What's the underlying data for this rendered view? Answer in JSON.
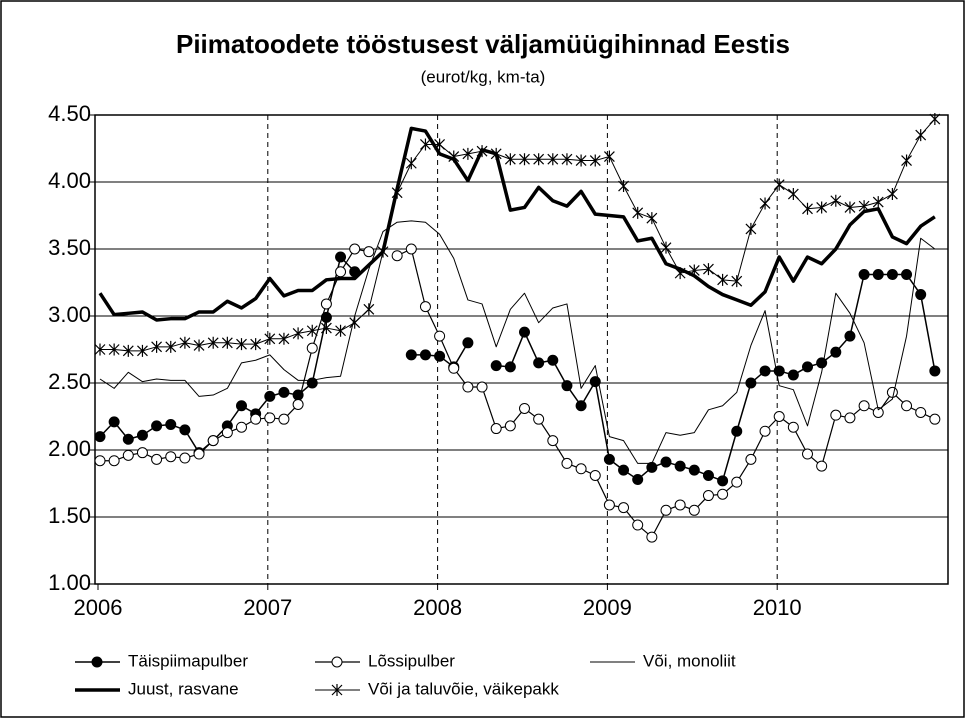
{
  "chart_data": {
    "type": "line",
    "title": "Piimatoodete tööstusest väljamüügihinnad Eestis",
    "subtitle": "(eurot/kg, km-ta)",
    "categories": [
      "2006",
      null,
      null,
      null,
      null,
      null,
      null,
      null,
      null,
      null,
      null,
      null,
      "2007",
      null,
      null,
      null,
      null,
      null,
      null,
      null,
      null,
      null,
      null,
      null,
      "2008",
      null,
      null,
      null,
      null,
      null,
      null,
      null,
      null,
      null,
      null,
      null,
      "2009",
      null,
      null,
      null,
      null,
      null,
      null,
      null,
      null,
      null,
      null,
      null,
      "2010",
      null,
      null,
      null,
      null,
      null,
      null,
      null,
      null,
      null,
      null,
      null
    ],
    "ylim": [
      1,
      4.5
    ],
    "yticks": [
      {
        "value": 1,
        "label": "1.00"
      },
      {
        "value": 1.5,
        "label": "1.50"
      },
      {
        "value": 2,
        "label": "2.00"
      },
      {
        "value": 2.5,
        "label": "2.50"
      },
      {
        "value": 3,
        "label": "3.00"
      },
      {
        "value": 3.5,
        "label": "3.50"
      },
      {
        "value": 4,
        "label": "4.00"
      },
      {
        "value": 4.5,
        "label": "4.50"
      }
    ],
    "grid": true,
    "legend": "bottom",
    "series": [
      {
        "name": "Täispiimapulber",
        "color": "#000000",
        "marker": "filled-circle",
        "line_width": 1.5,
        "values": [
          2.1,
          2.21,
          2.08,
          2.11,
          2.18,
          2.19,
          2.15,
          1.98,
          2.07,
          2.18,
          2.33,
          2.27,
          2.4,
          2.43,
          2.41,
          2.5,
          2.99,
          3.44,
          3.33,
          null,
          null,
          null,
          2.71,
          2.71,
          2.7,
          2.62,
          2.8,
          null,
          2.63,
          2.62,
          2.88,
          2.65,
          2.67,
          2.48,
          2.33,
          2.51,
          1.93,
          1.85,
          1.78,
          1.87,
          1.91,
          1.88,
          1.85,
          1.81,
          1.77,
          2.14,
          2.5,
          2.59,
          2.59,
          2.56,
          2.62,
          2.65,
          2.73,
          2.85,
          3.31,
          3.31,
          3.31,
          3.31,
          3.16,
          2.59
        ]
      },
      {
        "name": "Lõssipulber",
        "color": "#000000",
        "marker": "open-circle",
        "line_width": 1.2,
        "values": [
          1.92,
          1.92,
          1.96,
          1.98,
          1.93,
          1.95,
          1.94,
          1.97,
          2.07,
          2.13,
          2.17,
          2.23,
          2.24,
          2.23,
          2.34,
          2.76,
          3.09,
          3.33,
          3.5,
          3.48,
          null,
          3.45,
          3.5,
          3.07,
          2.85,
          2.61,
          2.47,
          2.47,
          2.16,
          2.18,
          2.31,
          2.23,
          2.07,
          1.9,
          1.86,
          1.81,
          1.59,
          1.57,
          1.44,
          1.35,
          1.55,
          1.59,
          1.55,
          1.66,
          1.67,
          1.76,
          1.93,
          2.14,
          2.25,
          2.17,
          1.97,
          1.88,
          2.26,
          2.24,
          2.33,
          2.28,
          2.43,
          2.33,
          2.28,
          2.23
        ]
      },
      {
        "name": "Või, monoliit",
        "color": "#000000",
        "marker": "none",
        "line_width": 1,
        "values": [
          2.53,
          2.46,
          2.58,
          2.51,
          2.53,
          2.52,
          2.52,
          2.4,
          2.41,
          2.46,
          2.65,
          2.67,
          2.71,
          2.6,
          2.52,
          2.52,
          2.54,
          2.55,
          3.0,
          3.35,
          3.63,
          3.7,
          3.71,
          3.7,
          3.61,
          3.43,
          3.12,
          3.09,
          2.77,
          3.05,
          3.17,
          2.95,
          3.06,
          3.09,
          2.46,
          2.63,
          2.1,
          2.07,
          1.9,
          1.9,
          2.13,
          2.11,
          2.13,
          2.3,
          2.33,
          2.43,
          2.78,
          3.04,
          2.48,
          2.45,
          2.18,
          2.58,
          3.17,
          3.02,
          2.8,
          2.3,
          2.38,
          2.85,
          3.58,
          3.5
        ]
      },
      {
        "name": "Juust, rasvane",
        "color": "#000000",
        "marker": "none",
        "line_width": 3.5,
        "values": [
          3.17,
          3.01,
          3.02,
          3.03,
          2.97,
          2.98,
          2.98,
          3.03,
          3.03,
          3.11,
          3.06,
          3.13,
          3.28,
          3.15,
          3.19,
          3.19,
          3.27,
          3.28,
          3.28,
          3.38,
          3.48,
          3.95,
          4.4,
          4.38,
          4.21,
          4.17,
          4.01,
          4.24,
          4.21,
          3.79,
          3.81,
          3.96,
          3.86,
          3.82,
          3.93,
          3.76,
          3.75,
          3.74,
          3.56,
          3.58,
          3.39,
          3.35,
          3.3,
          3.22,
          3.16,
          3.12,
          3.08,
          3.18,
          3.44,
          3.26,
          3.44,
          3.39,
          3.5,
          3.68,
          3.78,
          3.8,
          3.59,
          3.54,
          3.67,
          3.74
        ]
      },
      {
        "name": "Või ja taluvõie, väikepakk",
        "color": "#000000",
        "marker": "star",
        "line_width": 1,
        "values": [
          2.75,
          2.75,
          2.74,
          2.74,
          2.77,
          2.77,
          2.8,
          2.78,
          2.8,
          2.8,
          2.79,
          2.79,
          2.83,
          2.83,
          2.87,
          2.89,
          2.91,
          2.89,
          2.95,
          3.05,
          3.48,
          3.92,
          4.14,
          4.28,
          4.28,
          4.19,
          4.21,
          4.23,
          4.21,
          4.17,
          4.17,
          4.17,
          4.17,
          4.17,
          4.16,
          4.16,
          4.19,
          3.97,
          3.77,
          3.73,
          3.51,
          3.32,
          3.34,
          3.35,
          3.27,
          3.26,
          3.65,
          3.84,
          3.98,
          3.91,
          3.8,
          3.81,
          3.86,
          3.81,
          3.82,
          3.85,
          3.91,
          4.16,
          4.35,
          4.47
        ]
      }
    ]
  }
}
